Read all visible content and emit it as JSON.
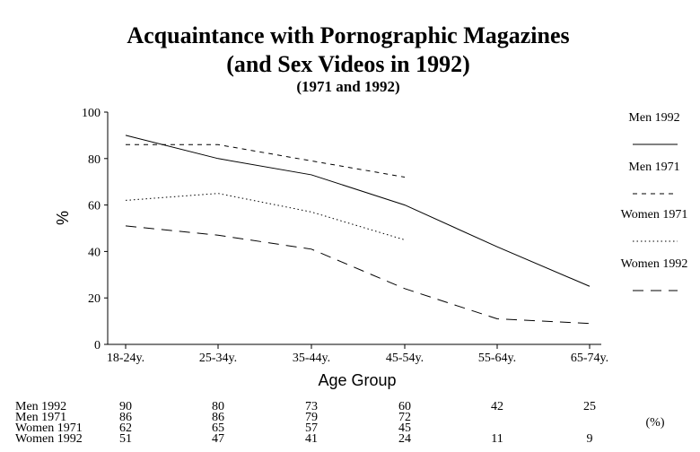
{
  "chart_data": {
    "type": "line",
    "title": "Acquaintance with Pornographic Magazines",
    "title_line2": "(and Sex Videos in 1992)",
    "subtitle": "(1971 and 1992)",
    "xlabel": "Age Group",
    "ylabel": "%",
    "ylim": [
      0,
      100
    ],
    "yticks": [
      "0",
      "20",
      "40",
      "60",
      "80",
      "100"
    ],
    "categories": [
      "18-24y.",
      "25-34y.",
      "35-44y.",
      "45-54y.",
      "55-64y.",
      "65-74y."
    ],
    "legend_position": "right",
    "series": [
      {
        "name": "Men 1992",
        "dash": "solid",
        "values": [
          90,
          80,
          73,
          60,
          42,
          25
        ]
      },
      {
        "name": "Men 1971",
        "dash": "dashed",
        "values": [
          86,
          86,
          79,
          72,
          null,
          null
        ]
      },
      {
        "name": "Women 1971",
        "dash": "dotted",
        "values": [
          62,
          65,
          57,
          45,
          null,
          null
        ]
      },
      {
        "name": "Women 1992",
        "dash": "longdash",
        "values": [
          51,
          47,
          41,
          24,
          11,
          9
        ]
      }
    ],
    "table_unit": "(%)"
  }
}
